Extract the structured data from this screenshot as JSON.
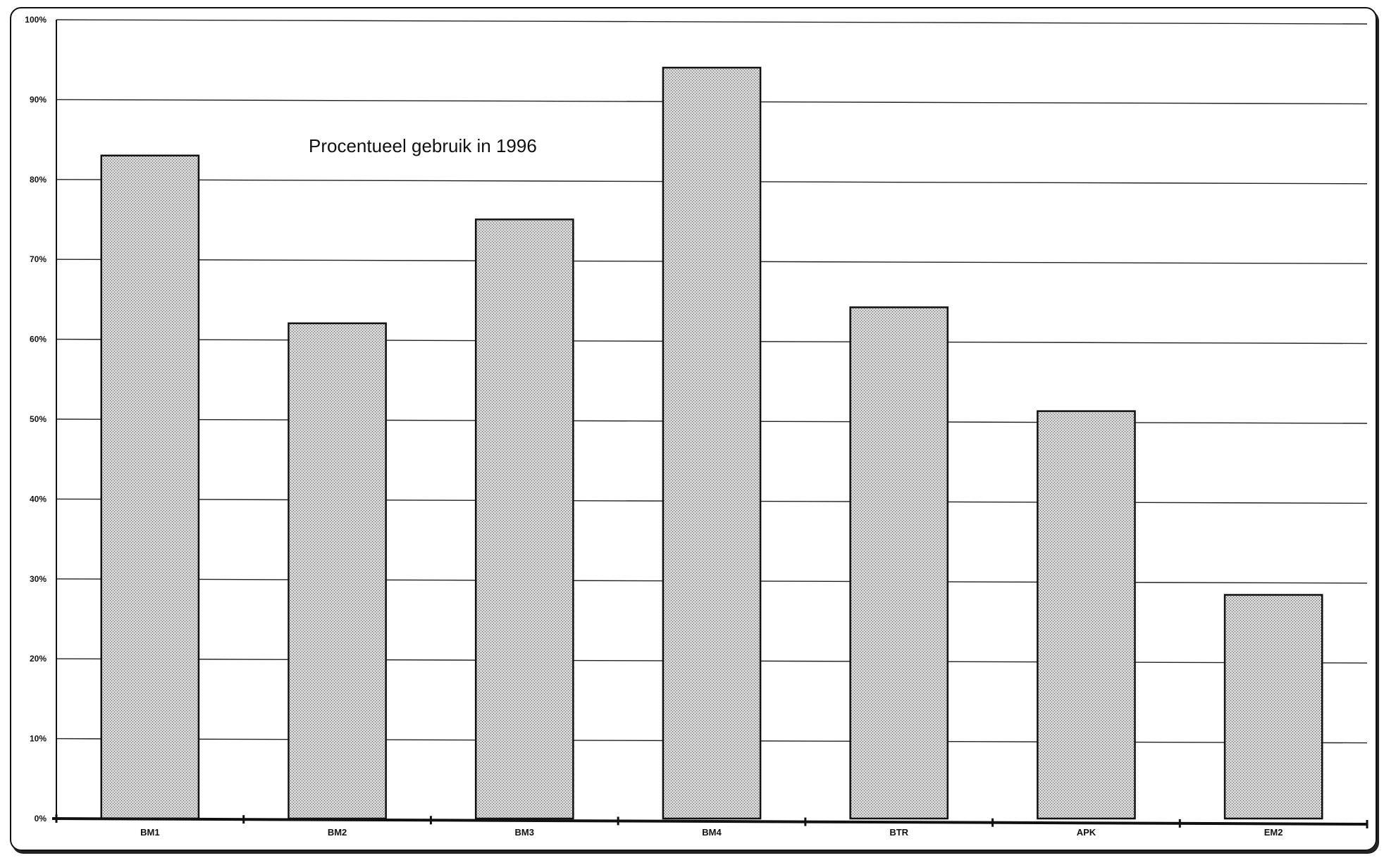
{
  "chart_data": {
    "type": "bar",
    "title": "Procentueel gebruik in 1996",
    "xlabel": "",
    "ylabel": "",
    "categories": [
      "BM1",
      "BM2",
      "BM3",
      "BM4",
      "BTR",
      "APK",
      "EM2"
    ],
    "values": [
      83,
      62,
      75,
      94,
      64,
      51,
      28
    ],
    "value_unit": "%",
    "ylim": [
      0,
      100
    ],
    "yticks": [
      0,
      10,
      20,
      30,
      40,
      50,
      60,
      70,
      80,
      90,
      100
    ],
    "ytick_labels": [
      "0%",
      "10%",
      "20%",
      "30%",
      "40%",
      "50%",
      "60%",
      "70%",
      "80%",
      "90%",
      "100%"
    ],
    "grid": true,
    "legend": "none",
    "bar_fill": "#c8c8c8",
    "bar_stroke": "#111111"
  }
}
